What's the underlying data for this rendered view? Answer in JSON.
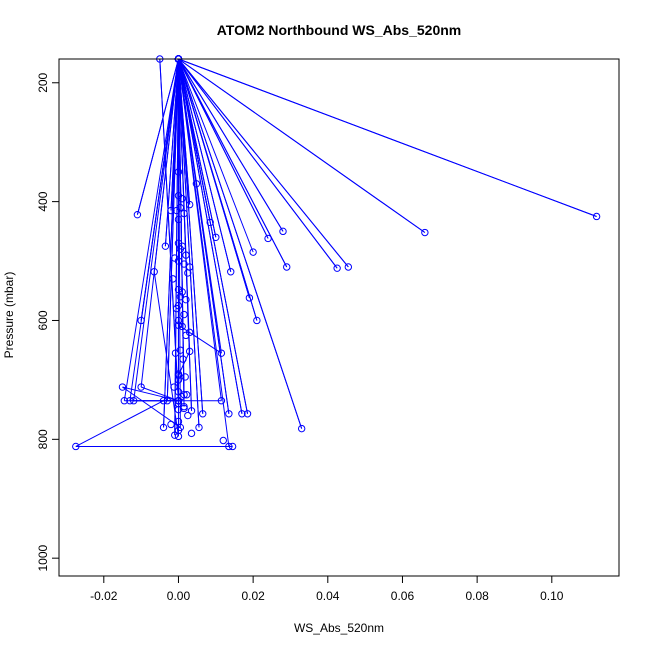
{
  "chart_data": {
    "type": "scatter",
    "title": "ATOM2 Northbound WS_Abs_520nm",
    "xlabel": "WS_Abs_520nm",
    "ylabel": "Pressure (mbar)",
    "xlim": [
      -0.032,
      0.118
    ],
    "ylim": [
      1030,
      160
    ],
    "y_axis_reversed": true,
    "x_ticks": [
      -0.02,
      0.0,
      0.02,
      0.04,
      0.06,
      0.08,
      0.1
    ],
    "x_tick_labels": [
      "-0.02",
      "0.00",
      "0.02",
      "0.04",
      "0.06",
      "0.08",
      "0.10"
    ],
    "y_ticks": [
      200,
      400,
      600,
      800,
      1000
    ],
    "y_tick_labels": [
      "200",
      "400",
      "600",
      "800",
      "1000"
    ],
    "grid": false,
    "legend": "none",
    "series": [
      {
        "style": "lines-and-open-circles",
        "color": "#0000ff",
        "x": [
          0.0,
          0.0135,
          0.0145,
          -0.0275,
          -0.004,
          0.0,
          0.0115,
          0.0,
          0.0005,
          -0.015,
          0.0,
          -0.0145,
          0.0,
          -0.01,
          0.0,
          -0.012,
          0.0,
          -0.013,
          0.0,
          -0.005,
          0.0,
          0.0,
          -0.003,
          0.0,
          0.0015,
          0.0,
          0.0065,
          0.0,
          0.0035,
          0.0,
          -0.004,
          0.0,
          0.0,
          0.003,
          0.0,
          0.0,
          0.0115,
          0.0,
          0.021,
          0.0,
          0.024,
          0.0,
          0.028,
          0.0,
          0.029,
          0.0,
          0.0425,
          0.0,
          0.0455,
          0.0,
          0.066,
          0.0,
          0.112,
          0.0,
          0.033,
          0.0,
          0.017,
          0.0,
          0.0185,
          0.0,
          0.0135,
          0.0,
          -0.001,
          0.0,
          0.0055,
          0.0,
          0.0015,
          0.0,
          0.0,
          -0.0065,
          0.0,
          -0.01,
          0.0,
          -0.011,
          0.0,
          -0.0035,
          0.0,
          -0.002,
          0.0,
          0.003,
          0.0,
          0.0085,
          0.0,
          0.01,
          0.0,
          0.014,
          0.0,
          0.019,
          0.0,
          0.02
        ],
        "y": [
          160,
          812,
          812,
          812,
          735,
          735,
          735,
          160,
          780,
          712,
          735,
          735,
          160,
          712,
          735,
          735,
          160,
          735,
          735,
          160,
          740,
          160,
          735,
          160,
          745,
          160,
          757,
          160,
          752,
          160,
          780,
          160,
          692,
          652,
          160,
          608,
          655,
          160,
          600,
          160,
          462,
          160,
          450,
          160,
          510,
          160,
          512,
          160,
          510,
          160,
          452,
          160,
          425,
          160,
          782,
          160,
          757,
          160,
          757,
          160,
          757,
          160,
          793,
          160,
          780,
          160,
          725,
          160,
          795,
          518,
          160,
          600,
          160,
          422,
          160,
          475,
          160,
          415,
          160,
          405,
          160,
          435,
          160,
          460,
          160,
          518,
          160,
          562,
          160,
          485
        ]
      }
    ],
    "extra_markers": {
      "x": [
        0.0,
        0.001,
        0.0005,
        -0.0005,
        0.0015,
        0.0,
        0.001,
        0.0005,
        0.002,
        -0.001,
        0.0,
        0.0015,
        0.003,
        0.0025,
        -0.0015,
        0.0,
        0.001,
        0.0005,
        0.002,
        0.0,
        -0.0005,
        0.0015,
        0.0,
        0.001,
        0.003,
        0.002,
        0.0005,
        -0.0008,
        0.0012,
        0.0,
        0.0018,
        0.0,
        -0.0012,
        0.0,
        0.0022,
        0.0008,
        0.0,
        0.0015,
        0.0,
        0.0025,
        0.0,
        -0.002,
        0.0,
        0.0035,
        0.0,
        0.0048,
        0.0,
        0.012
      ],
      "y": [
        390,
        395,
        410,
        415,
        420,
        470,
        475,
        480,
        490,
        495,
        500,
        505,
        510,
        520,
        530,
        548,
        552,
        560,
        565,
        575,
        580,
        590,
        600,
        610,
        620,
        625,
        650,
        655,
        665,
        690,
        695,
        700,
        712,
        720,
        725,
        728,
        740,
        748,
        750,
        760,
        770,
        775,
        785,
        790,
        350,
        370,
        430,
        802
      ]
    }
  }
}
